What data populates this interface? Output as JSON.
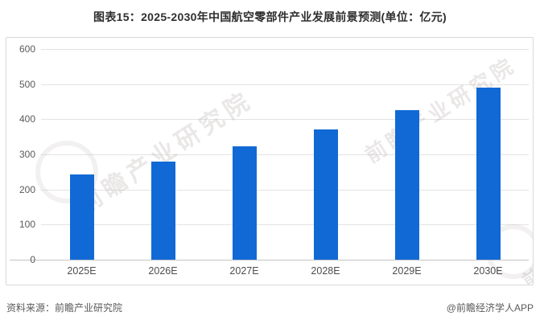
{
  "title": "图表15：2025-2030年中国航空零部件产业发展前景预测(单位：亿元)",
  "footer": {
    "source": "资料来源：前瞻产业研究院",
    "brand": "@前瞻经济学人APP"
  },
  "watermark": {
    "text": "前瞻产业研究院"
  },
  "colors": {
    "bar": "#1169d6",
    "grid": "#e3e3e3",
    "axis": "#c4c4c4",
    "tick_label": "#595959",
    "title": "#2e2e2e",
    "border": "#d9d9d9"
  },
  "chart_data": {
    "type": "bar",
    "title": "2025-2030年中国航空零部件产业发展前景预测",
    "unit": "亿元",
    "categories": [
      "2025E",
      "2026E",
      "2027E",
      "2028E",
      "2029E",
      "2030E"
    ],
    "values": [
      243,
      280,
      324,
      372,
      427,
      491
    ],
    "xlabel": "",
    "ylabel": "",
    "ylim": [
      0,
      600
    ],
    "yticks": [
      0,
      100,
      200,
      300,
      400,
      500,
      600
    ],
    "grid": true,
    "legend": false
  }
}
